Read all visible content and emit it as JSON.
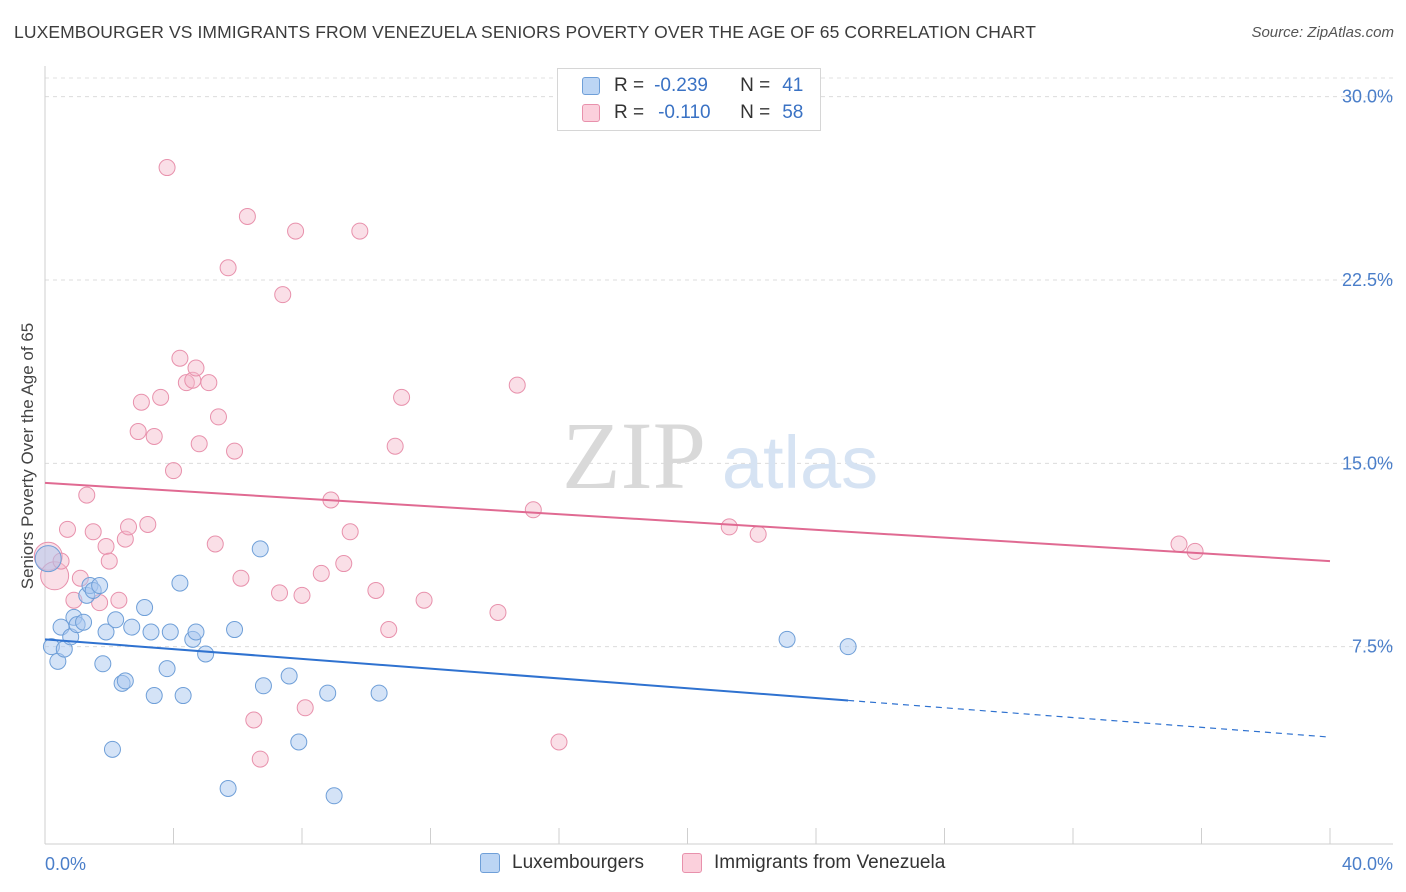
{
  "title": "LUXEMBOURGER VS IMMIGRANTS FROM VENEZUELA SENIORS POVERTY OVER THE AGE OF 65 CORRELATION CHART",
  "source": "Source: ZipAtlas.com",
  "watermark": {
    "zip": "ZIP",
    "atlas": "atlas"
  },
  "colors": {
    "blue": "#a9c8f0",
    "blue_stroke": "#6f9fd8",
    "blue_line": "#2f72d0",
    "pink": "#f5b8ca",
    "pink_stroke": "#e891ac",
    "pink_line": "#e06a92",
    "tick_label": "#4a7ec9"
  },
  "legend": {
    "rows": [
      {
        "r_label": "R =",
        "r_value": "-0.239",
        "n_label": "N =",
        "n_value": "41"
      },
      {
        "r_label": "R =",
        "r_value": "-0.110",
        "n_label": "N =",
        "n_value": "58"
      }
    ]
  },
  "bottom_legend": {
    "series1": "Luxembourgers",
    "series2": "Immigrants from Venezuela"
  },
  "chart_data": {
    "type": "scatter",
    "title": "LUXEMBOURGER VS IMMIGRANTS FROM VENEZUELA SENIORS POVERTY OVER THE AGE OF 65 CORRELATION CHART",
    "xlabel": "",
    "ylabel": "Seniors Poverty Over the Age of 65",
    "xlim": [
      0,
      40
    ],
    "ylim": [
      0,
      31.5
    ],
    "x_tick_labels": [
      "0.0%",
      "40.0%"
    ],
    "y_ticks": [
      7.5,
      15.0,
      22.5,
      30.0
    ],
    "y_tick_labels": [
      "7.5%",
      "15.0%",
      "22.5%",
      "30.0%"
    ],
    "grid": "horizontal dashed",
    "legend_position": "top-center",
    "series": [
      {
        "name": "Luxembourgers",
        "r": -0.239,
        "n": 41,
        "trend": {
          "x0": 0,
          "y0": 7.8,
          "x1": 25,
          "y1": 5.3,
          "dashed_to_x": 40,
          "dashed_to_y": 3.8
        },
        "points": [
          [
            0.2,
            7.5
          ],
          [
            0.4,
            6.9
          ],
          [
            0.5,
            8.3
          ],
          [
            0.6,
            7.4
          ],
          [
            0.8,
            7.9
          ],
          [
            0.9,
            8.7
          ],
          [
            1.0,
            8.4
          ],
          [
            1.2,
            8.5
          ],
          [
            1.3,
            9.6
          ],
          [
            1.4,
            10.0
          ],
          [
            1.5,
            9.8
          ],
          [
            1.7,
            10.0
          ],
          [
            1.8,
            6.8
          ],
          [
            1.9,
            8.1
          ],
          [
            2.1,
            3.3
          ],
          [
            2.2,
            8.6
          ],
          [
            2.4,
            6.0
          ],
          [
            2.5,
            6.1
          ],
          [
            2.7,
            8.3
          ],
          [
            3.1,
            9.1
          ],
          [
            3.3,
            8.1
          ],
          [
            3.4,
            5.5
          ],
          [
            3.8,
            6.6
          ],
          [
            3.9,
            8.1
          ],
          [
            4.2,
            10.1
          ],
          [
            4.3,
            5.5
          ],
          [
            4.6,
            7.8
          ],
          [
            4.7,
            8.1
          ],
          [
            5.0,
            7.2
          ],
          [
            5.7,
            1.7
          ],
          [
            5.9,
            8.2
          ],
          [
            6.7,
            11.5
          ],
          [
            6.8,
            5.9
          ],
          [
            7.6,
            6.3
          ],
          [
            7.9,
            3.6
          ],
          [
            8.8,
            5.6
          ],
          [
            9.0,
            1.4
          ],
          [
            10.4,
            5.6
          ],
          [
            23.1,
            7.8
          ],
          [
            25.0,
            7.5
          ],
          [
            0.1,
            11.1
          ]
        ]
      },
      {
        "name": "Immigrants from Venezuela",
        "r": -0.11,
        "n": 58,
        "trend": {
          "x0": 0,
          "y0": 14.2,
          "x1": 40,
          "y1": 11.0
        },
        "points": [
          [
            0.1,
            11.2
          ],
          [
            0.3,
            10.4
          ],
          [
            0.5,
            11.0
          ],
          [
            0.7,
            12.3
          ],
          [
            0.9,
            9.4
          ],
          [
            1.1,
            10.3
          ],
          [
            1.3,
            13.7
          ],
          [
            1.5,
            12.2
          ],
          [
            1.7,
            9.3
          ],
          [
            1.9,
            11.6
          ],
          [
            2.0,
            11.0
          ],
          [
            2.3,
            9.4
          ],
          [
            2.5,
            11.9
          ],
          [
            2.6,
            12.4
          ],
          [
            2.9,
            16.3
          ],
          [
            3.0,
            17.5
          ],
          [
            3.2,
            12.5
          ],
          [
            3.4,
            16.1
          ],
          [
            3.6,
            17.7
          ],
          [
            3.8,
            27.1
          ],
          [
            4.0,
            14.7
          ],
          [
            4.2,
            19.3
          ],
          [
            4.4,
            18.3
          ],
          [
            4.6,
            18.4
          ],
          [
            4.7,
            18.9
          ],
          [
            4.8,
            15.8
          ],
          [
            5.1,
            18.3
          ],
          [
            5.3,
            11.7
          ],
          [
            5.4,
            16.9
          ],
          [
            5.7,
            23.0
          ],
          [
            5.9,
            15.5
          ],
          [
            6.1,
            10.3
          ],
          [
            6.3,
            25.1
          ],
          [
            6.5,
            4.5
          ],
          [
            6.7,
            2.9
          ],
          [
            7.3,
            9.7
          ],
          [
            7.4,
            21.9
          ],
          [
            7.8,
            24.5
          ],
          [
            8.0,
            9.6
          ],
          [
            8.1,
            5.0
          ],
          [
            8.6,
            10.5
          ],
          [
            8.9,
            13.5
          ],
          [
            9.3,
            10.9
          ],
          [
            9.5,
            12.2
          ],
          [
            9.8,
            24.5
          ],
          [
            10.3,
            9.8
          ],
          [
            10.7,
            8.2
          ],
          [
            10.9,
            15.7
          ],
          [
            11.1,
            17.7
          ],
          [
            11.8,
            9.4
          ],
          [
            14.1,
            8.9
          ],
          [
            14.7,
            18.2
          ],
          [
            15.2,
            13.1
          ],
          [
            16.0,
            3.6
          ],
          [
            21.3,
            12.4
          ],
          [
            22.2,
            12.1
          ],
          [
            35.3,
            11.7
          ],
          [
            35.8,
            11.4
          ]
        ]
      }
    ]
  }
}
